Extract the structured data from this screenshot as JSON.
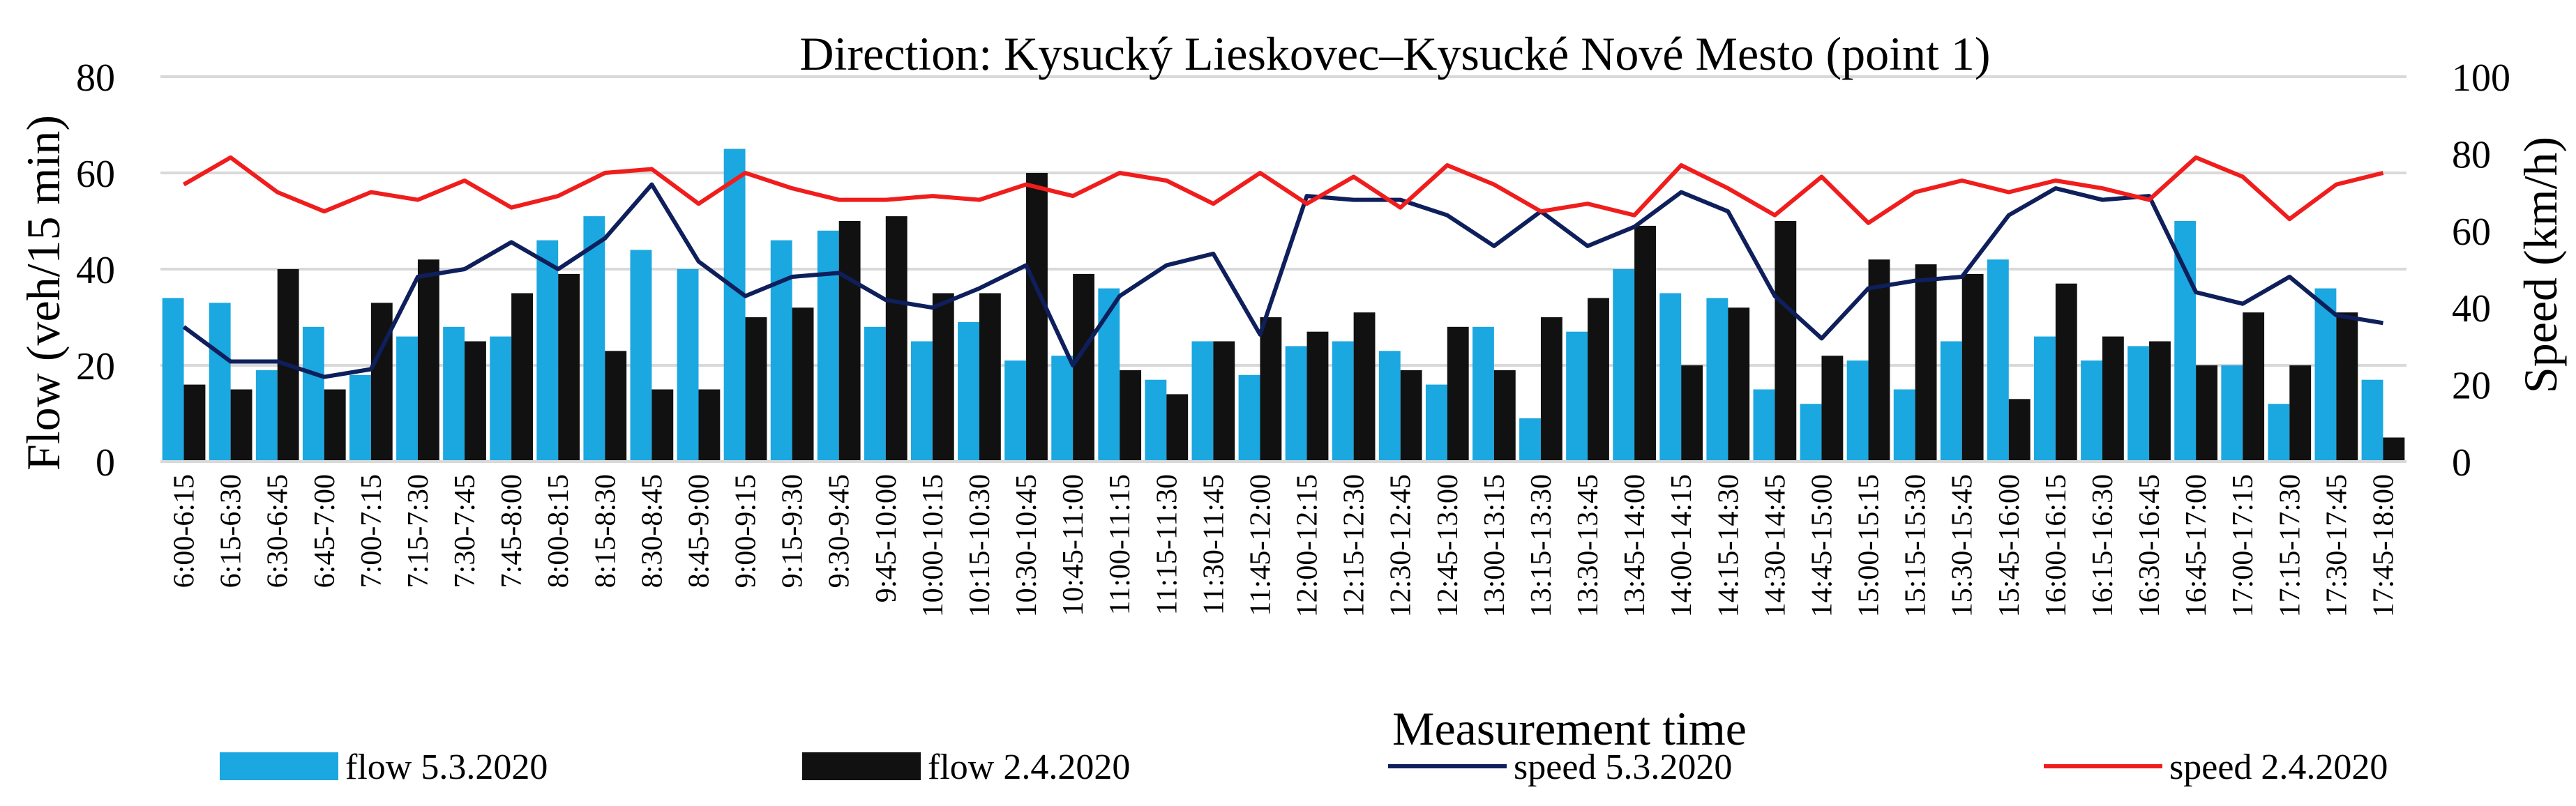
{
  "chart_data": {
    "type": "bar",
    "title": "Direction: Kysucký Lieskovec–Kysucké Nové Mesto (point 1)",
    "xlabel": "Measurement time",
    "ylabel": "Flow (veh/15 min)",
    "y2label": "Speed (km/h)",
    "ylim": [
      0,
      80
    ],
    "y2lim": [
      0,
      100
    ],
    "yticks": [
      "0",
      "20",
      "40",
      "60",
      "80"
    ],
    "y2ticks": [
      "0",
      "20",
      "40",
      "60",
      "80",
      "100"
    ],
    "grid": true,
    "legend_position": "bottom",
    "categories": [
      "6:00-6:15",
      "6:15-6:30",
      "6:30-6:45",
      "6:45-7:00",
      "7:00-7:15",
      "7:15-7:30",
      "7:30-7:45",
      "7:45-8:00",
      "8:00-8:15",
      "8:15-8:30",
      "8:30-8:45",
      "8:45-9:00",
      "9:00-9:15",
      "9:15-9:30",
      "9:30-9:45",
      "9:45-10:00",
      "10:00-10:15",
      "10:15-10:30",
      "10:30-10:45",
      "10:45-11:00",
      "11:00-11:15",
      "11:15-11:30",
      "11:30-11:45",
      "11:45-12:00",
      "12:00-12:15",
      "12:15-12:30",
      "12:30-12:45",
      "12:45-13:00",
      "13:00-13:15",
      "13:15-13:30",
      "13:30-13:45",
      "13:45-14:00",
      "14:00-14:15",
      "14:15-14:30",
      "14:30-14:45",
      "14:45-15:00",
      "15:00-15:15",
      "15:15-15:30",
      "15:30-15:45",
      "15:45-16:00",
      "16:00-16:15",
      "16:15-16:30",
      "16:30-16:45",
      "16:45-17:00",
      "17:00-17:15",
      "17:15-17:30",
      "17:30-17:45",
      "17:45-18:00"
    ],
    "series": [
      {
        "name": "flow 5.3.2020",
        "kind": "bar",
        "axis": "left",
        "color": "#1BA7E0",
        "values": [
          34,
          33,
          19,
          28,
          18,
          26,
          28,
          26,
          46,
          51,
          44,
          40,
          65,
          46,
          48,
          28,
          25,
          29,
          21,
          22,
          36,
          17,
          25,
          18,
          24,
          25,
          23,
          16,
          28,
          9,
          27,
          40,
          35,
          34,
          15,
          12,
          21,
          15,
          25,
          42,
          26,
          21,
          24,
          50,
          20,
          12,
          36,
          17
        ]
      },
      {
        "name": "flow 2.4.2020",
        "kind": "bar",
        "axis": "left",
        "color": "#111111",
        "values": [
          16,
          15,
          40,
          15,
          33,
          42,
          25,
          35,
          39,
          23,
          15,
          15,
          30,
          32,
          50,
          51,
          35,
          35,
          60,
          39,
          19,
          14,
          25,
          30,
          27,
          31,
          19,
          28,
          19,
          30,
          34,
          49,
          20,
          32,
          50,
          22,
          42,
          41,
          39,
          13,
          37,
          26,
          25,
          20,
          31,
          20,
          31,
          5
        ]
      },
      {
        "name": "speed 5.3.2020",
        "kind": "line",
        "axis": "right",
        "color": "#0E1F5B",
        "values": [
          35,
          26,
          26,
          22,
          24,
          48,
          50,
          57,
          50,
          58,
          72,
          52,
          43,
          48,
          49,
          42,
          40,
          45,
          51,
          25,
          43,
          51,
          54,
          33,
          69,
          68,
          68,
          64,
          56,
          65,
          56,
          61,
          70,
          65,
          43,
          32,
          45,
          47,
          48,
          64,
          71,
          68,
          69,
          44,
          41,
          48,
          38,
          36
        ]
      },
      {
        "name": "speed 2.4.2020",
        "kind": "line",
        "axis": "right",
        "color": "#F01D1D",
        "values": [
          72,
          79,
          70,
          65,
          70,
          68,
          73,
          66,
          69,
          75,
          76,
          67,
          75,
          71,
          68,
          68,
          69,
          68,
          72,
          69,
          75,
          73,
          67,
          75,
          67,
          74,
          66,
          77,
          72,
          65,
          67,
          64,
          77,
          71,
          64,
          74,
          62,
          70,
          73,
          70,
          73,
          71,
          68,
          79,
          74,
          63,
          72,
          75
        ]
      }
    ]
  }
}
